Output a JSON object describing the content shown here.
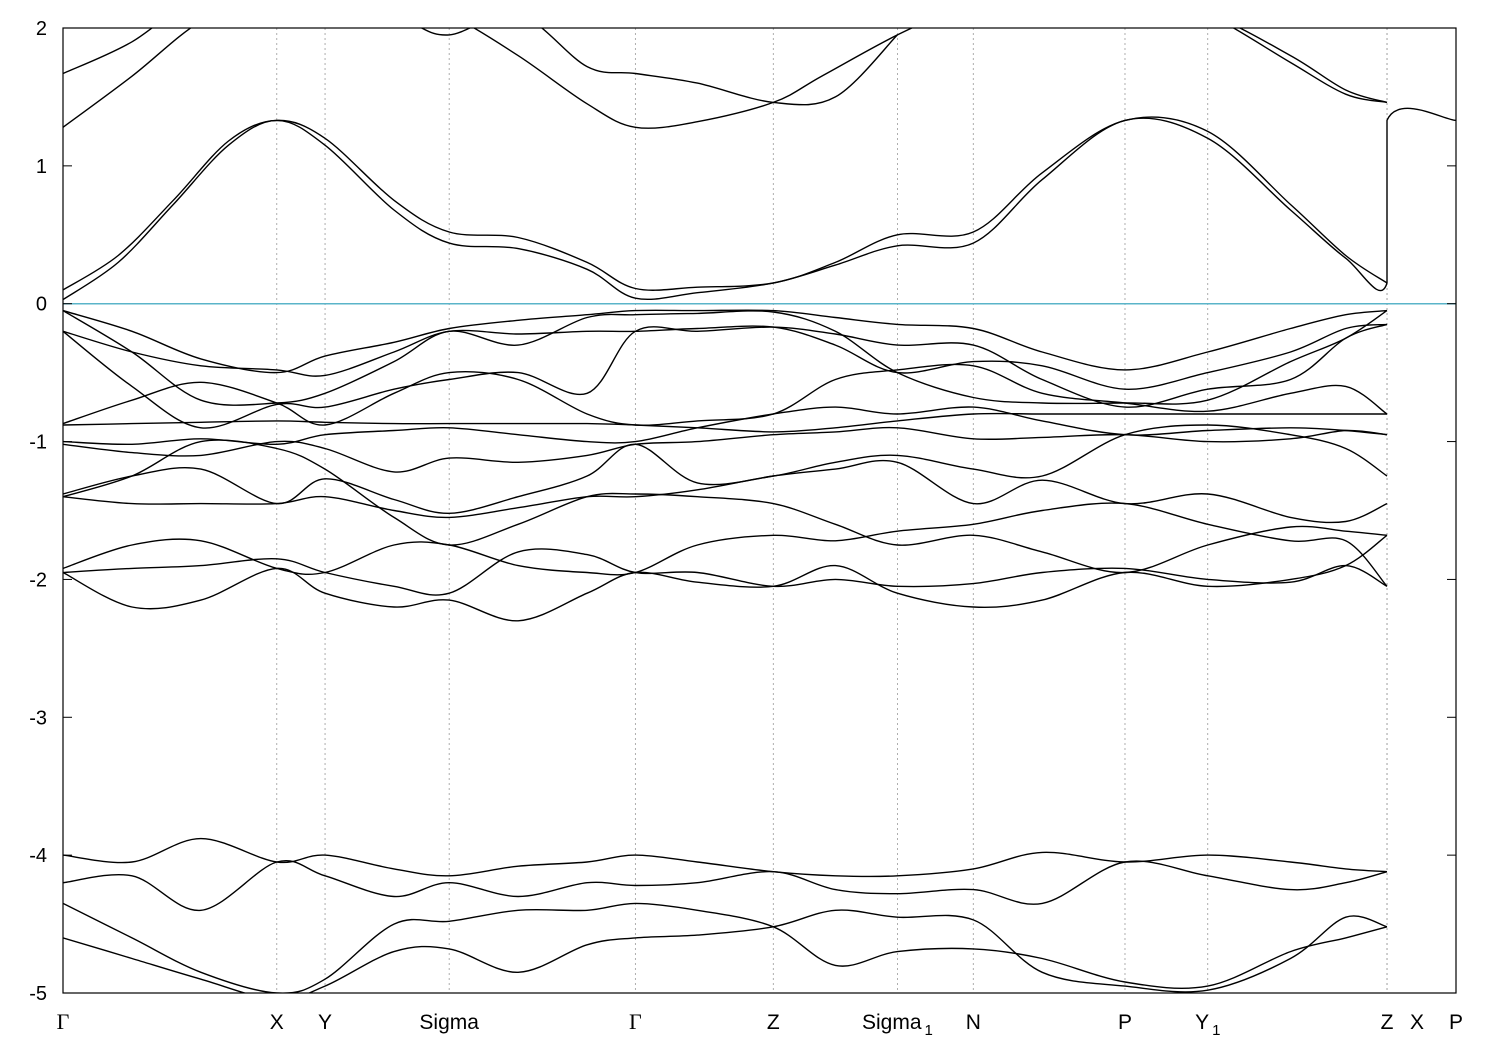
{
  "chart_data": {
    "type": "line",
    "title": "",
    "xlabel": "",
    "ylabel": "",
    "ylim": [
      -5,
      2
    ],
    "yticks": [
      "2",
      "1",
      "0",
      "-1",
      "-2",
      "-3",
      "-4",
      "-5"
    ],
    "fermi_level": 0,
    "colors": {
      "bands": "#000000",
      "fermi": "#5ab4c9",
      "kpoint_lines": "#9a9a9a"
    },
    "kpoints": [
      {
        "label": "Γ",
        "x": 0.0
      },
      {
        "label": "X",
        "x": 1.55
      },
      {
        "label": "Y",
        "x": 1.9
      },
      {
        "label": "Sigma",
        "x": 2.8
      },
      {
        "label": "Γ",
        "x": 4.15
      },
      {
        "label": "Z",
        "x": 5.15
      },
      {
        "label": "Sigma",
        "sub": "1",
        "x": 6.05
      },
      {
        "label": "N",
        "x": 6.6
      },
      {
        "label": "P",
        "x": 7.7
      },
      {
        "label": "Y",
        "sub": "1",
        "x": 8.3
      },
      {
        "label": "Z",
        "x": 9.6
      },
      {
        "label": "X",
        "x": 9.6
      },
      {
        "label": "P",
        "x": 10.1
      }
    ],
    "series": [
      {
        "x": [
          0,
          0.4,
          0.8,
          1.2,
          1.55,
          1.9,
          2.4,
          2.8,
          3.3,
          3.8,
          4.15,
          4.6,
          5.15,
          5.6,
          6.05,
          6.6,
          7.1,
          7.7,
          8.3,
          8.9,
          9.3,
          9.6,
          9.6,
          10.1
        ],
        "y": [
          0.03,
          0.3,
          0.72,
          1.15,
          1.33,
          1.15,
          0.68,
          0.44,
          0.4,
          0.25,
          0.04,
          0.08,
          0.15,
          0.28,
          0.42,
          0.44,
          0.9,
          1.33,
          1.2,
          0.68,
          0.33,
          0.15,
          1.33,
          1.33
        ]
      },
      {
        "x": [
          0,
          0.4,
          0.8,
          1.2,
          1.55,
          1.9,
          2.4,
          2.8,
          3.3,
          3.8,
          4.15,
          4.6,
          5.15,
          5.6,
          6.05,
          6.6,
          7.1,
          7.7,
          8.3,
          8.9,
          9.3,
          9.6
        ],
        "y": [
          0.1,
          0.35,
          0.75,
          1.18,
          1.33,
          1.2,
          0.75,
          0.52,
          0.48,
          0.3,
          0.11,
          0.12,
          0.15,
          0.3,
          0.5,
          0.52,
          0.95,
          1.33,
          1.25,
          0.72,
          0.35,
          0.15
        ]
      },
      {
        "x": [
          0,
          0.5,
          1.0,
          1.55,
          2.0,
          2.5,
          2.8,
          3.3,
          3.8,
          4.15,
          4.6,
          5.15,
          5.5,
          6.05,
          6.6
        ],
        "y": [
          1.28,
          1.65,
          2.05,
          2.3,
          2.3,
          2.2,
          2.1,
          1.8,
          1.45,
          1.28,
          1.32,
          1.46,
          1.65,
          1.95,
          2.2
        ]
      },
      {
        "x": [
          0,
          0.5,
          1.0,
          1.55,
          2.0,
          2.5,
          2.8,
          3.3,
          3.8,
          4.15,
          4.6,
          5.15,
          5.6,
          6.05
        ],
        "y": [
          1.67,
          1.9,
          2.25,
          2.4,
          2.3,
          2.05,
          1.95,
          2.1,
          1.72,
          1.67,
          1.6,
          1.46,
          1.5,
          1.95
        ]
      },
      {
        "x": [
          7.7,
          8.3,
          8.9,
          9.3,
          9.6
        ],
        "y": [
          2.2,
          2.1,
          1.8,
          1.55,
          1.46
        ]
      },
      {
        "x": [
          7.9,
          8.4,
          8.9,
          9.3,
          9.6
        ],
        "y": [
          2.3,
          2.05,
          1.75,
          1.52,
          1.46
        ]
      },
      {
        "x": [
          0,
          0.5,
          1.0,
          1.55,
          1.9,
          2.4,
          2.8,
          3.3,
          3.8,
          4.15,
          4.6,
          5.15,
          5.6,
          6.05,
          6.6,
          7.1,
          7.7,
          8.3,
          8.9,
          9.3,
          9.6
        ],
        "y": [
          -0.05,
          -0.2,
          -0.4,
          -0.5,
          -0.38,
          -0.28,
          -0.18,
          -0.12,
          -0.08,
          -0.05,
          -0.05,
          -0.05,
          -0.1,
          -0.15,
          -0.18,
          -0.35,
          -0.48,
          -0.35,
          -0.18,
          -0.08,
          -0.05
        ]
      },
      {
        "x": [
          0,
          0.5,
          1.0,
          1.55,
          1.9,
          2.4,
          2.8,
          3.3,
          3.8,
          4.15,
          4.6,
          5.15,
          5.6,
          6.05,
          6.6,
          7.1,
          7.7,
          8.3,
          8.9,
          9.3,
          9.6
        ],
        "y": [
          -0.2,
          -0.35,
          -0.45,
          -0.48,
          -0.52,
          -0.35,
          -0.2,
          -0.22,
          -0.2,
          -0.2,
          -0.18,
          -0.17,
          -0.3,
          -0.5,
          -0.42,
          -0.45,
          -0.62,
          -0.5,
          -0.35,
          -0.18,
          -0.15
        ]
      },
      {
        "x": [
          0,
          0.5,
          1.0,
          1.55,
          1.9,
          2.4,
          2.8,
          3.3,
          3.8,
          4.15,
          4.6,
          5.15,
          5.6,
          6.05,
          6.6,
          7.1,
          7.7,
          8.3,
          8.9,
          9.3,
          9.6
        ],
        "y": [
          -0.2,
          -0.6,
          -0.9,
          -0.73,
          -0.75,
          -0.62,
          -0.55,
          -0.5,
          -0.65,
          -0.2,
          -0.2,
          -0.17,
          -0.22,
          -0.3,
          -0.3,
          -0.55,
          -0.75,
          -0.62,
          -0.55,
          -0.25,
          -0.15
        ]
      },
      {
        "x": [
          0,
          0.5,
          1.0,
          1.55,
          1.9,
          2.4,
          2.8,
          3.3,
          3.8,
          4.15,
          4.6,
          5.15,
          5.6,
          6.05,
          6.6,
          7.1,
          7.7,
          8.3,
          8.9,
          9.3,
          9.6
        ],
        "y": [
          -0.05,
          -0.35,
          -0.7,
          -0.72,
          -0.65,
          -0.42,
          -0.2,
          -0.3,
          -0.1,
          -0.08,
          -0.07,
          -0.06,
          -0.2,
          -0.5,
          -0.68,
          -0.72,
          -0.72,
          -0.7,
          -0.42,
          -0.25,
          -0.05
        ]
      },
      {
        "x": [
          0,
          0.5,
          1.0,
          1.55,
          1.9,
          2.4,
          2.8,
          3.3,
          3.8,
          4.15,
          4.6,
          5.15,
          5.6,
          6.05,
          6.6,
          7.1,
          7.7,
          8.3,
          8.9,
          9.3,
          9.6
        ],
        "y": [
          -0.87,
          -0.7,
          -0.57,
          -0.72,
          -0.88,
          -0.65,
          -0.5,
          -0.55,
          -0.8,
          -0.88,
          -0.85,
          -0.8,
          -0.55,
          -0.48,
          -0.45,
          -0.65,
          -0.72,
          -0.78,
          -0.65,
          -0.6,
          -0.8
        ]
      },
      {
        "x": [
          0,
          0.5,
          1.0,
          1.55,
          1.9,
          2.4,
          2.8,
          3.3,
          3.8,
          4.15,
          4.6,
          5.15,
          5.6,
          6.05,
          6.6,
          7.1,
          7.7,
          8.3,
          8.9,
          9.3,
          9.6
        ],
        "y": [
          -0.88,
          -0.87,
          -0.86,
          -0.85,
          -0.86,
          -0.87,
          -0.87,
          -0.87,
          -0.87,
          -0.88,
          -0.9,
          -0.93,
          -0.9,
          -0.85,
          -0.8,
          -0.8,
          -0.8,
          -0.8,
          -0.8,
          -0.8,
          -0.8
        ]
      },
      {
        "x": [
          0,
          0.5,
          1.0,
          1.55,
          1.9,
          2.4,
          2.8,
          3.3,
          3.8,
          4.15,
          4.6,
          5.15,
          5.6,
          6.05,
          6.6,
          7.1,
          7.7,
          8.3,
          8.9,
          9.3,
          9.6
        ],
        "y": [
          -1.0,
          -1.02,
          -0.98,
          -1.02,
          -0.95,
          -0.92,
          -0.9,
          -0.95,
          -1.0,
          -1.0,
          -0.9,
          -0.8,
          -0.75,
          -0.8,
          -0.75,
          -0.85,
          -0.95,
          -0.92,
          -0.9,
          -0.92,
          -0.95
        ]
      },
      {
        "x": [
          0,
          0.5,
          1.0,
          1.55,
          1.9,
          2.4,
          2.8,
          3.3,
          3.8,
          4.15,
          4.6,
          5.15,
          5.6,
          6.05,
          6.6,
          7.1,
          7.7,
          8.3,
          8.9,
          9.3,
          9.6
        ],
        "y": [
          -1.02,
          -1.08,
          -1.1,
          -1.0,
          -1.05,
          -1.22,
          -1.12,
          -1.15,
          -1.1,
          -1.02,
          -1.0,
          -0.95,
          -0.93,
          -0.9,
          -0.98,
          -0.97,
          -0.95,
          -1.0,
          -0.98,
          -0.92,
          -0.95
        ]
      },
      {
        "x": [
          0,
          0.5,
          1.0,
          1.55,
          1.9,
          2.4,
          2.8,
          3.3,
          3.8,
          4.15,
          4.6,
          5.15,
          5.6,
          6.05,
          6.6,
          7.1,
          7.7,
          8.3,
          8.9,
          9.3,
          9.6
        ],
        "y": [
          -1.38,
          -1.25,
          -1.2,
          -1.45,
          -1.27,
          -1.42,
          -1.52,
          -1.4,
          -1.25,
          -1.02,
          -1.3,
          -1.25,
          -1.15,
          -1.1,
          -1.2,
          -1.25,
          -0.95,
          -0.88,
          -0.95,
          -1.05,
          -1.25
        ]
      },
      {
        "x": [
          0,
          0.5,
          1.0,
          1.55,
          1.9,
          2.4,
          2.8,
          3.3,
          3.8,
          4.15,
          4.6,
          5.15,
          5.6,
          6.05,
          6.6,
          7.1,
          7.7,
          8.3,
          8.9,
          9.3,
          9.6
        ],
        "y": [
          -1.4,
          -1.45,
          -1.45,
          -1.45,
          -1.4,
          -1.5,
          -1.55,
          -1.48,
          -1.4,
          -1.4,
          -1.35,
          -1.25,
          -1.2,
          -1.15,
          -1.45,
          -1.28,
          -1.45,
          -1.38,
          -1.55,
          -1.58,
          -1.45
        ]
      },
      {
        "x": [
          0,
          0.5,
          1.0,
          1.55,
          1.9,
          2.4,
          2.8,
          3.3,
          3.8,
          4.15,
          4.6,
          5.15,
          5.6,
          6.05,
          6.6,
          7.1,
          7.7,
          8.3,
          8.9,
          9.3,
          9.6
        ],
        "y": [
          -1.4,
          -1.25,
          -1.0,
          -1.05,
          -1.2,
          -1.55,
          -1.75,
          -1.6,
          -1.4,
          -1.38,
          -1.4,
          -1.45,
          -1.6,
          -1.75,
          -1.68,
          -1.8,
          -1.95,
          -1.75,
          -1.62,
          -1.65,
          -1.68
        ]
      },
      {
        "x": [
          0,
          0.5,
          1.0,
          1.55,
          1.9,
          2.4,
          2.8,
          3.3,
          3.8,
          4.15,
          4.6,
          5.15,
          5.6,
          6.05,
          6.6,
          7.1,
          7.7,
          8.3,
          8.9,
          9.3,
          9.6
        ],
        "y": [
          -1.92,
          -1.75,
          -1.72,
          -1.92,
          -1.95,
          -1.75,
          -1.75,
          -1.9,
          -1.95,
          -1.95,
          -1.75,
          -1.68,
          -1.72,
          -1.65,
          -1.6,
          -1.5,
          -1.45,
          -1.6,
          -1.72,
          -1.72,
          -2.05
        ]
      },
      {
        "x": [
          0,
          0.5,
          1.0,
          1.55,
          1.9,
          2.4,
          2.8,
          3.3,
          3.8,
          4.15,
          4.6,
          5.15,
          5.6,
          6.05,
          6.6,
          7.1,
          7.7,
          8.3,
          8.9,
          9.3,
          9.6
        ],
        "y": [
          -1.95,
          -1.92,
          -1.9,
          -1.85,
          -1.95,
          -2.05,
          -2.1,
          -1.8,
          -1.82,
          -1.95,
          -1.95,
          -2.05,
          -2.0,
          -2.05,
          -2.03,
          -1.95,
          -1.92,
          -2.0,
          -2.02,
          -1.9,
          -2.05
        ]
      },
      {
        "x": [
          0,
          0.5,
          1.0,
          1.55,
          1.9,
          2.4,
          2.8,
          3.3,
          3.8,
          4.15,
          4.6,
          5.15,
          5.6,
          6.05,
          6.6,
          7.1,
          7.7,
          8.3,
          8.9,
          9.3,
          9.6
        ],
        "y": [
          -1.95,
          -2.2,
          -2.15,
          -1.92,
          -2.1,
          -2.2,
          -2.15,
          -2.3,
          -2.1,
          -1.95,
          -2.02,
          -2.05,
          -1.9,
          -2.1,
          -2.2,
          -2.15,
          -1.95,
          -2.05,
          -2.0,
          -1.9,
          -1.68
        ]
      },
      {
        "x": [
          0,
          0.5,
          1.0,
          1.55,
          1.9,
          2.4,
          2.8,
          3.3,
          3.8,
          4.15,
          4.6,
          5.15,
          5.6,
          6.05,
          6.6,
          7.1,
          7.7,
          8.3,
          8.9,
          9.3,
          9.6
        ],
        "y": [
          -4.0,
          -4.05,
          -3.88,
          -4.05,
          -4.0,
          -4.1,
          -4.15,
          -4.08,
          -4.05,
          -4.0,
          -4.05,
          -4.12,
          -4.15,
          -4.15,
          -4.1,
          -3.98,
          -4.05,
          -4.0,
          -4.05,
          -4.1,
          -4.12
        ]
      },
      {
        "x": [
          0,
          0.5,
          1.0,
          1.55,
          1.9,
          2.4,
          2.8,
          3.3,
          3.8,
          4.15,
          4.6,
          5.15,
          5.6,
          6.05,
          6.6,
          7.1,
          7.7,
          8.3,
          8.9,
          9.3,
          9.6
        ],
        "y": [
          -4.2,
          -4.15,
          -4.4,
          -4.05,
          -4.15,
          -4.3,
          -4.2,
          -4.3,
          -4.2,
          -4.22,
          -4.2,
          -4.12,
          -4.25,
          -4.28,
          -4.25,
          -4.35,
          -4.05,
          -4.15,
          -4.25,
          -4.2,
          -4.12
        ]
      },
      {
        "x": [
          0,
          0.5,
          1.0,
          1.55,
          1.9,
          2.4,
          2.8,
          3.3,
          3.8,
          4.15,
          4.6,
          5.15,
          5.6,
          6.05,
          6.6,
          7.1,
          7.7,
          8.3,
          8.9,
          9.3,
          9.6
        ],
        "y": [
          -4.35,
          -4.6,
          -4.85,
          -5.0,
          -4.9,
          -4.5,
          -4.48,
          -4.4,
          -4.4,
          -4.35,
          -4.4,
          -4.52,
          -4.8,
          -4.7,
          -4.68,
          -4.75,
          -4.92,
          -4.95,
          -4.7,
          -4.6,
          -4.52
        ]
      },
      {
        "x": [
          0,
          0.5,
          1.0,
          1.55,
          1.9,
          2.4,
          2.8,
          3.3,
          3.8,
          4.15,
          4.6,
          5.15,
          5.6,
          6.05,
          6.6,
          7.1,
          7.7,
          8.3,
          8.9,
          9.3,
          9.6
        ],
        "y": [
          -4.6,
          -4.75,
          -4.9,
          -5.05,
          -4.95,
          -4.7,
          -4.68,
          -4.85,
          -4.65,
          -4.6,
          -4.58,
          -4.52,
          -4.4,
          -4.45,
          -4.47,
          -4.85,
          -4.95,
          -4.98,
          -4.75,
          -4.45,
          -4.52
        ]
      }
    ],
    "grid": false,
    "legend": "none"
  }
}
